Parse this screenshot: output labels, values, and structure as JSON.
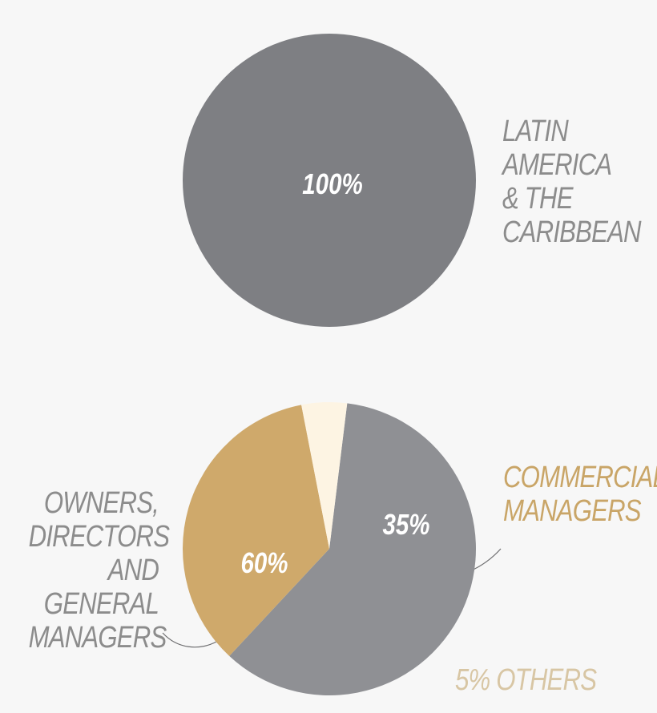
{
  "chart_data": [
    {
      "type": "pie",
      "categories": [
        "LATIN AMERICA & THE CARIBBEAN"
      ],
      "values": [
        100
      ],
      "value_labels": [
        "100%"
      ],
      "colors": [
        "#7e7f83"
      ]
    },
    {
      "type": "pie",
      "categories": [
        "OWNERS, DIRECTORS AND GENERAL MANAGERS",
        "COMMERCIAL MANAGERS",
        "OTHERS"
      ],
      "values": [
        60,
        35,
        5
      ],
      "value_labels": [
        "60%",
        "35%",
        "5%"
      ],
      "colors": [
        "#8f9094",
        "#cfa96b",
        "#fdf4e3"
      ]
    }
  ]
}
